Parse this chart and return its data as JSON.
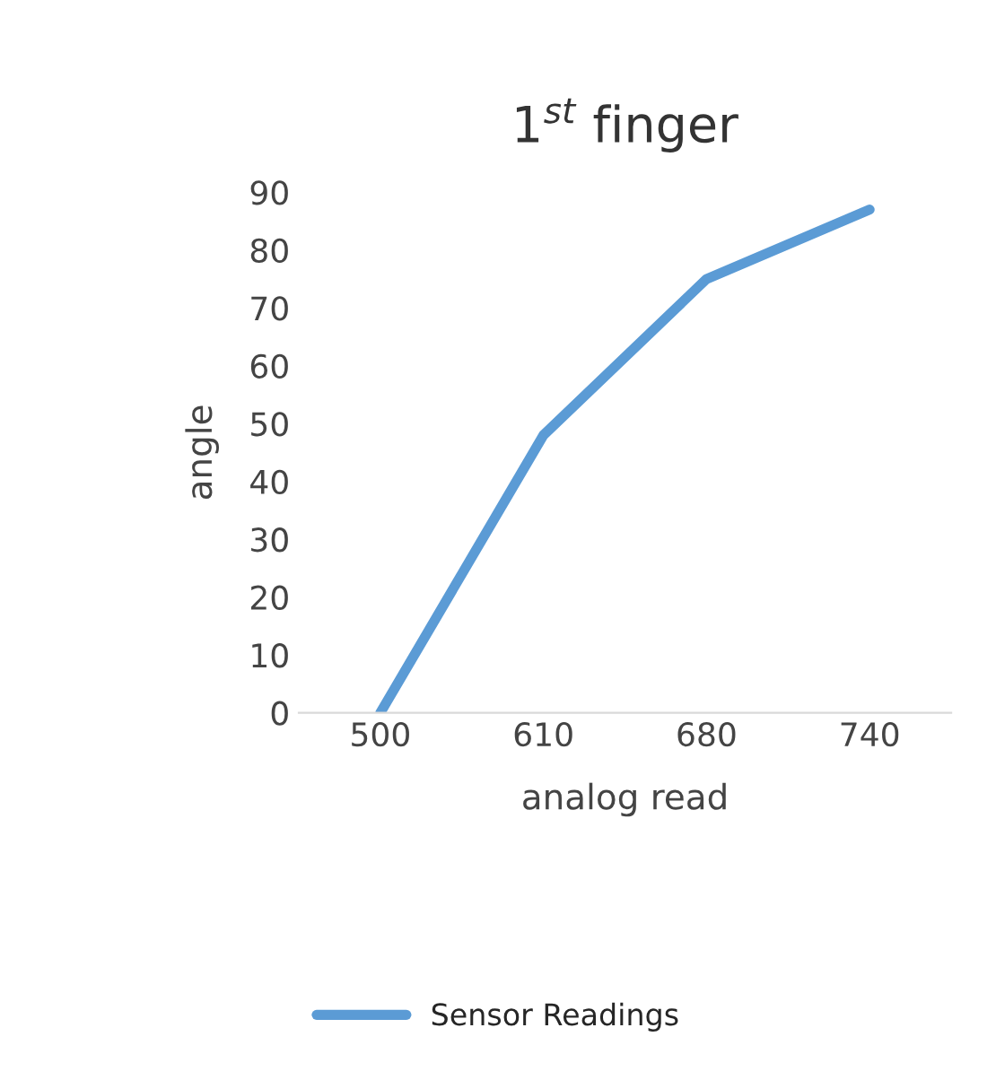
{
  "chart_data": {
    "type": "line",
    "title": "1$^{st}$ finger",
    "xlabel": "analog read",
    "ylabel": "angle",
    "categories": [
      "500",
      "610",
      "680",
      "740"
    ],
    "series": [
      {
        "name": "Sensor Readings",
        "color": "#5b9bd5",
        "values": [
          0,
          48,
          75,
          87
        ]
      }
    ],
    "ylim": [
      0,
      90
    ],
    "yticks": [
      0,
      10,
      20,
      30,
      40,
      50,
      60,
      70,
      80,
      90
    ],
    "grid": false,
    "legend": "bottom",
    "marker": "none",
    "line_style": "solid"
  }
}
